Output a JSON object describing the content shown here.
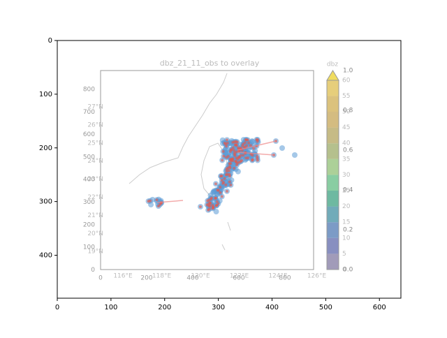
{
  "chart_data": {
    "type": "image",
    "xlim": [
      0,
      640
    ],
    "ylim": [
      480,
      0
    ],
    "xticks": [
      0,
      100,
      200,
      300,
      400,
      500,
      600
    ],
    "yticks": [
      0,
      100,
      200,
      300,
      400
    ],
    "image": {
      "title": "dbz_21_11_obs to overlay",
      "colorbar_label": "dbz",
      "colorbar_ticks": [
        "0",
        "5",
        "10",
        "15",
        "20",
        "25",
        "30",
        "35",
        "40",
        "45",
        "50",
        "55",
        "60"
      ],
      "colorbar_ticks_fraction": [
        "0.0",
        "0.2",
        "0.4",
        "0.6",
        "0.8",
        "1.0"
      ],
      "lat_labels": [
        "27°N",
        "26°N",
        "25°N",
        "24°N",
        "23°N",
        "22°N",
        "21°N",
        "20°N",
        "19°N"
      ],
      "lon_labels": [
        "116°E",
        "118°E",
        "120°E",
        "122°E",
        "124°E",
        "126°E"
      ],
      "inner_xticks": [
        "0",
        "200",
        "400",
        "600",
        "800"
      ],
      "inner_yticks": [
        "800",
        "700",
        "600",
        "500",
        "400",
        "300",
        "200",
        "100",
        "0"
      ]
    }
  }
}
